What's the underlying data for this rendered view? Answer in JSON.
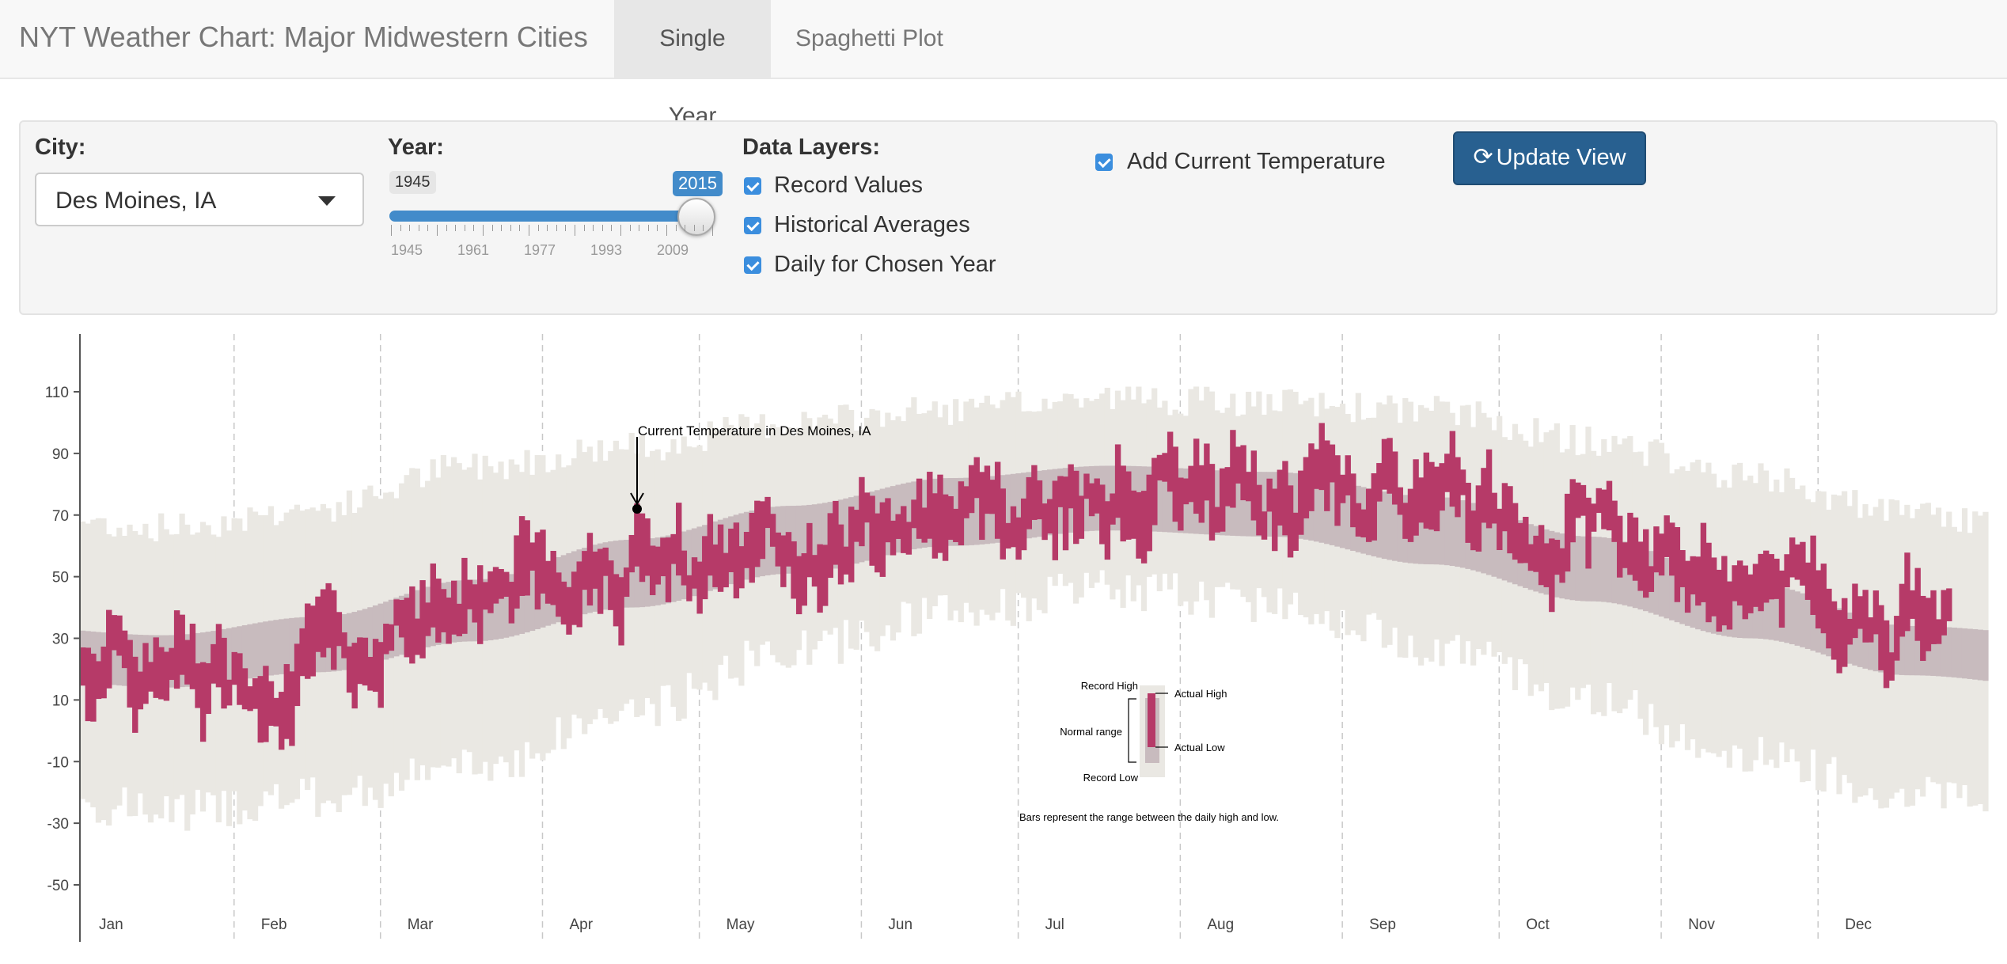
{
  "navbar": {
    "brand": "NYT Weather Chart: Major Midwestern Cities",
    "tabs": [
      {
        "label": "Single Year",
        "active": true
      },
      {
        "label": "Spaghetti Plot",
        "active": false
      }
    ]
  },
  "controls": {
    "city_label": "City:",
    "city_value": "Des Moines, IA",
    "year_label": "Year:",
    "year_min": "1945",
    "year_value": "2015",
    "year_fraction": 1.0,
    "year_grid": [
      "1945",
      "1961",
      "1977",
      "1993",
      "2009"
    ],
    "layers_label": "Data Layers:",
    "layers": [
      {
        "label": "Record Values",
        "checked": true
      },
      {
        "label": "Historical Averages",
        "checked": true
      },
      {
        "label": "Daily for Chosen Year",
        "checked": true
      }
    ],
    "current_temp": {
      "label": "Add Current Temperature",
      "checked": true
    },
    "update_button": "Update View",
    "update_icon": "refresh-icon"
  },
  "chart_data": {
    "type": "bar",
    "title": "",
    "xlabel": "",
    "ylabel": "",
    "ylim": [
      -55,
      120
    ],
    "yticks": [
      -50,
      -30,
      -10,
      10,
      30,
      50,
      70,
      90,
      110
    ],
    "months": [
      "Jan",
      "Feb",
      "Mar",
      "Apr",
      "May",
      "Jun",
      "Jul",
      "Aug",
      "Sep",
      "Oct",
      "Nov",
      "Dec"
    ],
    "grid": true,
    "series": [
      {
        "name": "Record High",
        "color": "#eae8e3"
      },
      {
        "name": "Normal range",
        "color": "#c8bbbe"
      },
      {
        "name": "Daily for Chosen Year",
        "color": "#b63a68"
      }
    ],
    "monthly_profile": {
      "record_high": [
        66,
        72,
        86,
        92,
        100,
        104,
        108,
        106,
        104,
        94,
        82,
        70
      ],
      "normal_high": [
        31,
        37,
        49,
        62,
        73,
        82,
        86,
        84,
        76,
        63,
        48,
        34
      ],
      "normal_low": [
        14,
        19,
        29,
        40,
        51,
        60,
        65,
        63,
        54,
        42,
        30,
        18
      ],
      "record_low": [
        -26,
        -22,
        -12,
        6,
        26,
        38,
        46,
        42,
        28,
        10,
        -8,
        -20
      ],
      "actual_mid": [
        18,
        22,
        48,
        56,
        58,
        72,
        78,
        76,
        74,
        66,
        50,
        36
      ]
    },
    "current_temperature": {
      "value": 72,
      "label": "Current Temperature in Des Moines, IA"
    },
    "legend": {
      "record_high": "Record High",
      "actual_high": "Actual High",
      "normal_range": "Normal range",
      "actual_low": "Actual Low",
      "record_low": "Record Low",
      "caption": "Bars represent the range between the daily high and low."
    }
  }
}
